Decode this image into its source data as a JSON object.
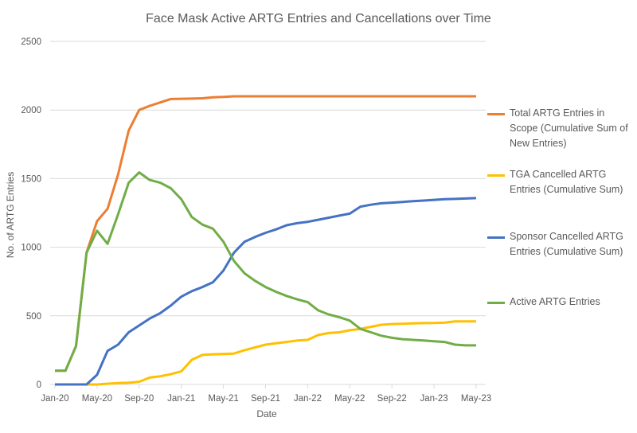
{
  "chart_data": {
    "type": "line",
    "title": "Face Mask Active ARTG Entries and Cancellations over Time",
    "xlabel": "Date",
    "ylabel": "No. of ARTG Entries",
    "ylim": [
      0,
      2500
    ],
    "yticks": [
      0,
      500,
      1000,
      1500,
      2000,
      2500
    ],
    "xtick_labels": [
      "Jan-20",
      "May-20",
      "Sep-20",
      "Jan-21",
      "May-21",
      "Sep-21",
      "Jan-22",
      "May-22",
      "Sep-22",
      "Jan-23",
      "May-23"
    ],
    "grid": "horizontal",
    "legend": "right",
    "x": [
      "Jan-20",
      "Feb-20",
      "Mar-20",
      "Apr-20",
      "May-20",
      "Jun-20",
      "Jul-20",
      "Aug-20",
      "Sep-20",
      "Oct-20",
      "Nov-20",
      "Dec-20",
      "Jan-21",
      "Feb-21",
      "Mar-21",
      "Apr-21",
      "May-21",
      "Jun-21",
      "Jul-21",
      "Aug-21",
      "Sep-21",
      "Oct-21",
      "Nov-21",
      "Dec-21",
      "Jan-22",
      "Feb-22",
      "Mar-22",
      "Apr-22",
      "May-22",
      "Jun-22",
      "Jul-22",
      "Aug-22",
      "Sep-22",
      "Oct-22",
      "Nov-22",
      "Dec-22",
      "Jan-23",
      "Feb-23",
      "Mar-23",
      "Apr-23",
      "May-23"
    ],
    "series": [
      {
        "name": "Total ARTG Entries in Scope (Cumulative Sum of New Entries)",
        "color": "#ED7D31",
        "values": [
          100,
          100,
          280,
          960,
          1190,
          1280,
          1530,
          1850,
          2000,
          2030,
          2055,
          2080,
          2082,
          2083,
          2085,
          2092,
          2095,
          2100,
          2100,
          2100,
          2100,
          2100,
          2100,
          2100,
          2100,
          2100,
          2100,
          2100,
          2100,
          2100,
          2100,
          2100,
          2100,
          2100,
          2100,
          2100,
          2100,
          2100,
          2100,
          2100,
          2100
        ]
      },
      {
        "name": "TGA Cancelled ARTG Entries (Cumulative Sum)",
        "color": "#FFC000",
        "values": [
          null,
          null,
          null,
          0,
          0,
          5,
          10,
          12,
          20,
          50,
          60,
          75,
          95,
          180,
          215,
          220,
          222,
          225,
          250,
          270,
          290,
          300,
          310,
          320,
          325,
          360,
          375,
          380,
          395,
          405,
          420,
          435,
          440,
          442,
          445,
          447,
          448,
          450,
          460,
          460,
          460
        ]
      },
      {
        "name": "Sponsor Cancelled ARTG Entries (Cumulative Sum)",
        "color": "#4472C4",
        "values": [
          0,
          0,
          0,
          0,
          70,
          245,
          290,
          380,
          430,
          480,
          520,
          575,
          640,
          680,
          710,
          745,
          830,
          960,
          1040,
          1075,
          1105,
          1130,
          1160,
          1175,
          1185,
          1200,
          1215,
          1230,
          1245,
          1295,
          1310,
          1320,
          1325,
          1330,
          1335,
          1340,
          1345,
          1350,
          1352,
          1355,
          1358
        ]
      },
      {
        "name": "Active ARTG Entries",
        "color": "#70AD47",
        "values": [
          100,
          100,
          280,
          960,
          1120,
          1025,
          1240,
          1470,
          1545,
          1490,
          1470,
          1430,
          1350,
          1220,
          1165,
          1135,
          1040,
          900,
          810,
          755,
          710,
          675,
          645,
          620,
          600,
          540,
          510,
          490,
          465,
          405,
          380,
          355,
          340,
          330,
          325,
          320,
          315,
          310,
          290,
          285,
          285
        ]
      }
    ]
  }
}
